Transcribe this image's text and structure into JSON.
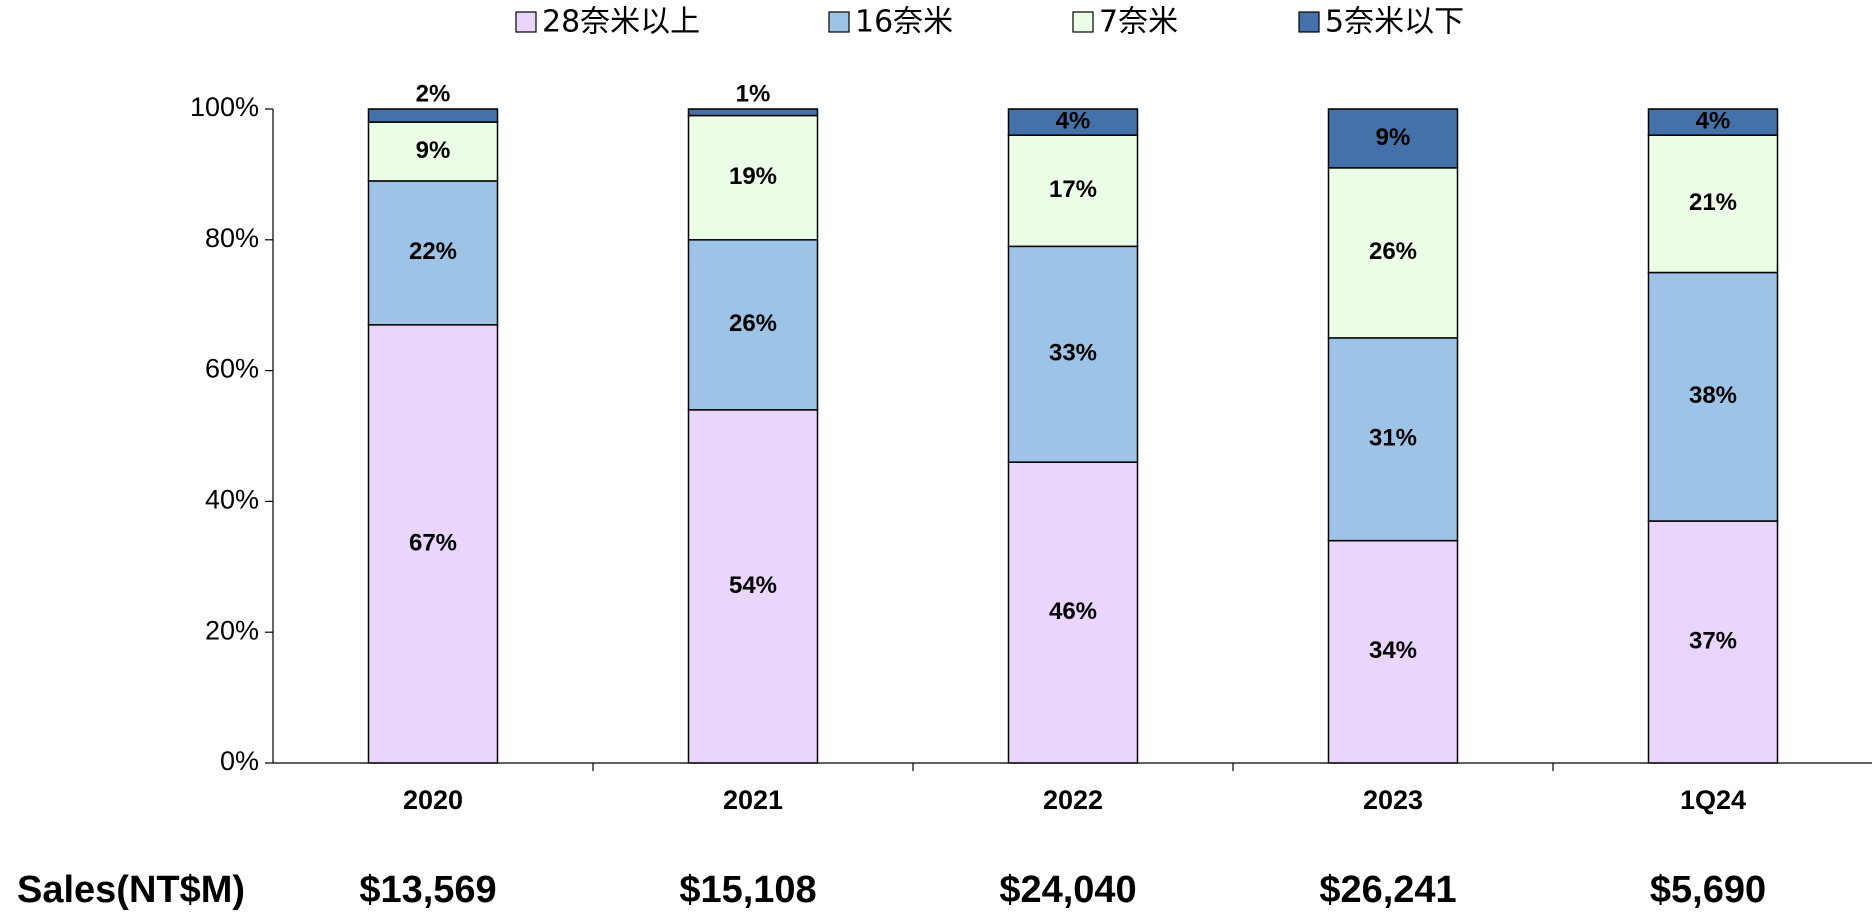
{
  "chart_data": {
    "type": "stacked_bar",
    "categories": [
      "2020",
      "2021",
      "2022",
      "2023",
      "1Q24"
    ],
    "series": [
      {
        "name": "28奈米以上",
        "color": "#ead5fc",
        "values": [
          67,
          54,
          46,
          34,
          37
        ],
        "value_labels": [
          "67%",
          "54%",
          "46%",
          "34%",
          "37%"
        ]
      },
      {
        "name": "16奈米",
        "color": "#9dc3e6",
        "values": [
          22,
          26,
          33,
          31,
          38
        ],
        "value_labels": [
          "22%",
          "26%",
          "33%",
          "31%",
          "38%"
        ]
      },
      {
        "name": "7奈米",
        "color": "#ebfde6",
        "values": [
          9,
          19,
          17,
          26,
          21
        ],
        "value_labels": [
          "9%",
          "19%",
          "17%",
          "26%",
          "21%"
        ]
      },
      {
        "name": "5奈米以下",
        "color": "#4472a8",
        "values": [
          2,
          1,
          4,
          9,
          4
        ],
        "value_labels": [
          "2%",
          "1%",
          "4%",
          "9%",
          "4%"
        ]
      }
    ],
    "ylim": [
      0,
      100
    ],
    "yticks": [
      {
        "value": 0,
        "label": "0%"
      },
      {
        "value": 20,
        "label": "20%"
      },
      {
        "value": 40,
        "label": "40%"
      },
      {
        "value": 60,
        "label": "60%"
      },
      {
        "value": 80,
        "label": "80%"
      },
      {
        "value": 100,
        "label": "100%"
      }
    ],
    "legend": "top",
    "sales": {
      "label": "Sales(NT$M)",
      "values": [
        "$13,569",
        "$15,108",
        "$24,040",
        "$26,241",
        "$5,690"
      ]
    }
  }
}
